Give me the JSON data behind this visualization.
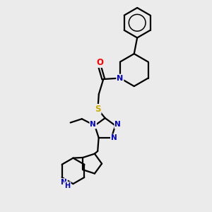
{
  "bg_color": "#ebebeb",
  "atom_colors": {
    "C": "#000000",
    "N": "#0000cc",
    "O": "#ff0000",
    "S": "#ccaa00",
    "H": "#0000cc"
  },
  "bond_color": "#000000",
  "bond_width": 1.6,
  "figsize": [
    3.0,
    3.0
  ],
  "dpi": 100,
  "xlim": [
    0,
    10
  ],
  "ylim": [
    0,
    10
  ]
}
